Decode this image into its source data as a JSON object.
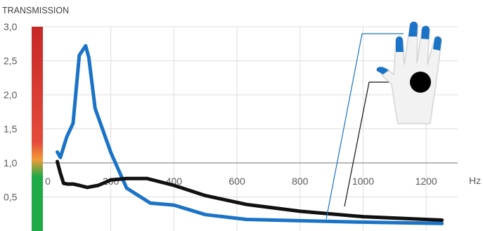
{
  "chart_data": {
    "type": "line",
    "ylabel": "TRANSMISSION",
    "xunit": "Hz",
    "xlim": [
      0,
      1300
    ],
    "ylim": [
      0,
      3.0
    ],
    "xticks": [
      0,
      200,
      400,
      600,
      800,
      1000,
      1200
    ],
    "yticks": [
      0.5,
      1.0,
      1.5,
      2.0,
      2.5,
      3.0
    ],
    "yticklabels": [
      "0,5",
      "1,0",
      "1,5",
      "2,0",
      "2,5",
      "3,0"
    ],
    "grid": true,
    "reference_line": 1.0,
    "colorbar_stops": [
      {
        "value": 0.0,
        "color": "#1faa48"
      },
      {
        "value": 0.8,
        "color": "#1faa48"
      },
      {
        "value": 1.05,
        "color": "#f29a38"
      },
      {
        "value": 1.3,
        "color": "#e54b3c"
      },
      {
        "value": 3.0,
        "color": "#c62828"
      }
    ],
    "series": [
      {
        "color": "#1a73c7",
        "marker": "palm",
        "x": [
          30,
          40,
          60,
          80,
          100,
          120,
          130,
          150,
          200,
          250,
          325,
          400,
          500,
          630,
          800,
          1000,
          1250
        ],
        "y": [
          1.16,
          1.08,
          1.38,
          1.58,
          2.58,
          2.72,
          2.55,
          1.8,
          1.15,
          0.63,
          0.41,
          0.38,
          0.24,
          0.17,
          0.15,
          0.13,
          0.11
        ]
      },
      {
        "color": "#111111",
        "marker": "dorsal",
        "x": [
          30,
          40,
          50,
          63,
          80,
          100,
          125,
          160,
          200,
          250,
          315,
          400,
          500,
          630,
          800,
          1000,
          1250
        ],
        "y": [
          1.02,
          0.85,
          0.7,
          0.69,
          0.69,
          0.67,
          0.64,
          0.67,
          0.75,
          0.77,
          0.77,
          0.67,
          0.52,
          0.39,
          0.29,
          0.21,
          0.16
        ]
      }
    ]
  }
}
